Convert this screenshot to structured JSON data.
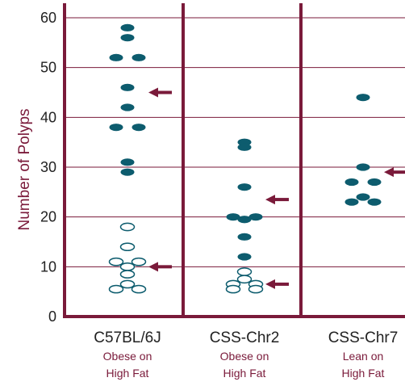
{
  "chart_data": {
    "type": "scatter",
    "ylabel": "Number of Polyps",
    "ylim": [
      0,
      60
    ],
    "yticks": [
      0,
      10,
      20,
      30,
      40,
      50,
      60
    ],
    "grid": true,
    "colors": {
      "frame": "#7a1a3a",
      "grid": "#7a1a3a",
      "point": "#0d5c6e",
      "arrow": "#7a1a3a",
      "label_main": "#222222",
      "label_sub": "#7a1a3a"
    },
    "categories": [
      {
        "name": "C57BL/6J",
        "sub1": "Obese on",
        "sub2": "High Fat"
      },
      {
        "name": "CSS-Chr2",
        "sub1": "Obese on",
        "sub2": "High Fat"
      },
      {
        "name": "CSS-Chr7",
        "sub1": "Lean on",
        "sub2": "High Fat"
      }
    ],
    "points": [
      {
        "cat": 0,
        "y": 58,
        "off": 0,
        "filled": true
      },
      {
        "cat": 0,
        "y": 56,
        "off": 0,
        "filled": true
      },
      {
        "cat": 0,
        "y": 52,
        "off": -1,
        "filled": true
      },
      {
        "cat": 0,
        "y": 52,
        "off": 1,
        "filled": true
      },
      {
        "cat": 0,
        "y": 46,
        "off": 0,
        "filled": true
      },
      {
        "cat": 0,
        "y": 42,
        "off": 0,
        "filled": true
      },
      {
        "cat": 0,
        "y": 38,
        "off": -1,
        "filled": true
      },
      {
        "cat": 0,
        "y": 38,
        "off": 1,
        "filled": true
      },
      {
        "cat": 0,
        "y": 31,
        "off": 0,
        "filled": true
      },
      {
        "cat": 0,
        "y": 29,
        "off": 0,
        "filled": true
      },
      {
        "cat": 0,
        "y": 18,
        "off": 0,
        "filled": false
      },
      {
        "cat": 0,
        "y": 14,
        "off": 0,
        "filled": false
      },
      {
        "cat": 0,
        "y": 11,
        "off": -1,
        "filled": false
      },
      {
        "cat": 0,
        "y": 11,
        "off": 1,
        "filled": false
      },
      {
        "cat": 0,
        "y": 10,
        "off": 0,
        "filled": false
      },
      {
        "cat": 0,
        "y": 8.5,
        "off": 0,
        "filled": false
      },
      {
        "cat": 0,
        "y": 6.5,
        "off": 0,
        "filled": false
      },
      {
        "cat": 0,
        "y": 5.5,
        "off": -1,
        "filled": false
      },
      {
        "cat": 0,
        "y": 5.5,
        "off": 1,
        "filled": false
      },
      {
        "cat": 1,
        "y": 35,
        "off": 0,
        "filled": true
      },
      {
        "cat": 1,
        "y": 34,
        "off": 0,
        "filled": true
      },
      {
        "cat": 1,
        "y": 26,
        "off": 0,
        "filled": true
      },
      {
        "cat": 1,
        "y": 20,
        "off": -1,
        "filled": true
      },
      {
        "cat": 1,
        "y": 20,
        "off": 1,
        "filled": true
      },
      {
        "cat": 1,
        "y": 19.5,
        "off": 0,
        "filled": true
      },
      {
        "cat": 1,
        "y": 16,
        "off": 0,
        "filled": true
      },
      {
        "cat": 1,
        "y": 12,
        "off": 0,
        "filled": true
      },
      {
        "cat": 1,
        "y": 9,
        "off": 0,
        "filled": false
      },
      {
        "cat": 1,
        "y": 7.5,
        "off": 0,
        "filled": false
      },
      {
        "cat": 1,
        "y": 6.5,
        "off": -1,
        "filled": false
      },
      {
        "cat": 1,
        "y": 6.5,
        "off": 1,
        "filled": false
      },
      {
        "cat": 1,
        "y": 5.5,
        "off": -1,
        "filled": false
      },
      {
        "cat": 1,
        "y": 5.5,
        "off": 1,
        "filled": false
      },
      {
        "cat": 2,
        "y": 44,
        "off": 0,
        "filled": true
      },
      {
        "cat": 2,
        "y": 30,
        "off": 0,
        "filled": true
      },
      {
        "cat": 2,
        "y": 27,
        "off": -1,
        "filled": true
      },
      {
        "cat": 2,
        "y": 27,
        "off": 1,
        "filled": true
      },
      {
        "cat": 2,
        "y": 24,
        "off": 0,
        "filled": true
      },
      {
        "cat": 2,
        "y": 23,
        "off": -1,
        "filled": true
      },
      {
        "cat": 2,
        "y": 23,
        "off": 1,
        "filled": true
      }
    ],
    "arrows": [
      {
        "cat": 0,
        "y": 45
      },
      {
        "cat": 0,
        "y": 10
      },
      {
        "cat": 1,
        "y": 23.5
      },
      {
        "cat": 1,
        "y": 6.5
      },
      {
        "cat": 2,
        "y": 29
      }
    ]
  }
}
